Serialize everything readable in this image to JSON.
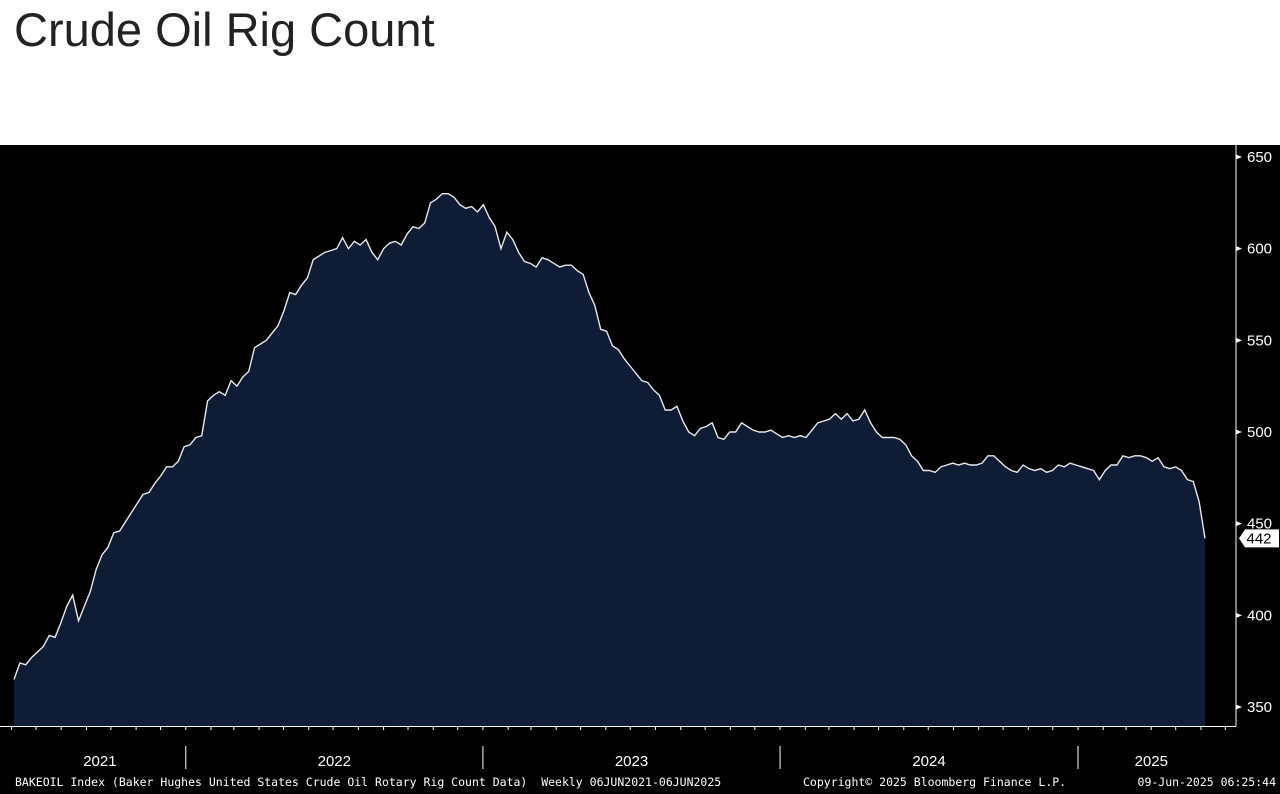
{
  "page": {
    "title": "Crude Oil Rig Count"
  },
  "footer": {
    "source_text": "BAKEOIL Index (Baker Hughes United States Crude Oil Rotary Rig Count Data)  Weekly 06JUN2021-06JUN2025",
    "copyright_text": "Copyright© 2025 Bloomberg Finance L.P.",
    "timestamp_text": "09-Jun-2025 06:25:44"
  },
  "colors": {
    "background": "#000000",
    "area_fill": "#0e1c36",
    "line": "#e8e8e8",
    "axis_text": "#ffffff",
    "title_text": "#222222"
  },
  "chart_data": {
    "type": "area",
    "title": "Crude Oil Rig Count",
    "frequency": "weekly",
    "x_start": "2021-06-04",
    "x_end": "2025-06-06",
    "ylim": [
      345,
      650
    ],
    "yticks": [
      350,
      400,
      450,
      500,
      550,
      600,
      650
    ],
    "y_axis_side": "right",
    "xticks": [
      "2021",
      "2022",
      "2023",
      "2024",
      "2025"
    ],
    "last_value_label": "442",
    "grid": false,
    "legend": "none",
    "series": [
      {
        "values": [
          365,
          374,
          373,
          377,
          380,
          383,
          389,
          388,
          396,
          405,
          411,
          397,
          405,
          413,
          425,
          433,
          437,
          445,
          446,
          451,
          456,
          461,
          466,
          467,
          472,
          476,
          481,
          481,
          484,
          492,
          493,
          497,
          498,
          517,
          520,
          522,
          520,
          528,
          525,
          530,
          533,
          546,
          548,
          550,
          554,
          558,
          566,
          576,
          575,
          580,
          584,
          594,
          596,
          598,
          599,
          600,
          606,
          600,
          604,
          602,
          605,
          598,
          594,
          600,
          603,
          604,
          602,
          608,
          612,
          611,
          614,
          625,
          627,
          630,
          630,
          628,
          624,
          622,
          623,
          620,
          624,
          617,
          612,
          600,
          609,
          605,
          598,
          593,
          592,
          590,
          595,
          594,
          592,
          590,
          591,
          591,
          588,
          586,
          576,
          569,
          556,
          555,
          547,
          545,
          540,
          536,
          532,
          528,
          527,
          523,
          520,
          512,
          512,
          514,
          506,
          500,
          498,
          502,
          503,
          505,
          497,
          496,
          500,
          500,
          505,
          503,
          501,
          500,
          500,
          501,
          499,
          497,
          498,
          497,
          498,
          497,
          501,
          505,
          506,
          507,
          510,
          507,
          510,
          506,
          507,
          512,
          505,
          500,
          497,
          497,
          497,
          496,
          493,
          487,
          484,
          479,
          479,
          478,
          481,
          482,
          483,
          482,
          483,
          482,
          482,
          483,
          487,
          487,
          484,
          481,
          479,
          478,
          482,
          480,
          479,
          480,
          478,
          479,
          482,
          481,
          483,
          482,
          481,
          480,
          479,
          474,
          479,
          482,
          482,
          487,
          486,
          487,
          487,
          486,
          484,
          486,
          481,
          480,
          481,
          479,
          474,
          473,
          462,
          442
        ]
      }
    ]
  }
}
